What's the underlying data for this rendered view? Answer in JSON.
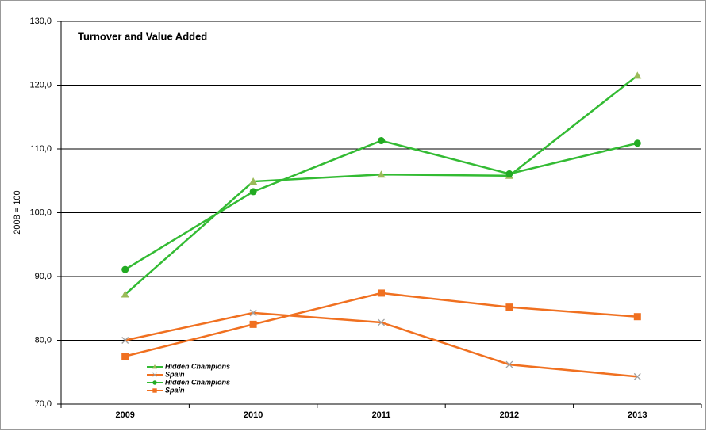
{
  "chart_data": {
    "type": "line",
    "title": "Turnover and Value Added",
    "y_label": "2008 = 100",
    "categories": [
      "2009",
      "2010",
      "2011",
      "2012",
      "2013"
    ],
    "series": [
      {
        "name": "Hidden Champions",
        "color": "#33bb33",
        "marker": "triangle",
        "marker_color": "#9bbb59",
        "values": [
          87.2,
          104.9,
          106.0,
          105.8,
          121.5
        ]
      },
      {
        "name": "Spain",
        "color": "#f07020",
        "marker": "x",
        "marker_color": "#a0a0a0",
        "values": [
          80.0,
          84.3,
          82.8,
          76.2,
          74.3
        ]
      },
      {
        "name": "Hidden Champions",
        "color": "#33bb33",
        "marker": "circle",
        "marker_color": "#22aa22",
        "values": [
          91.1,
          103.3,
          111.3,
          106.1,
          110.9
        ]
      },
      {
        "name": "Spain",
        "color": "#f07020",
        "marker": "square",
        "marker_color": "#f07020",
        "values": [
          77.5,
          82.5,
          87.4,
          85.2,
          83.7
        ]
      }
    ],
    "ylim": [
      70,
      130
    ],
    "yticks": [
      {
        "value": 70,
        "label": "70,0"
      },
      {
        "value": 80,
        "label": "80,0"
      },
      {
        "value": 90,
        "label": "90,0"
      },
      {
        "value": 100,
        "label": "100,0"
      },
      {
        "value": 110,
        "label": "110,0"
      },
      {
        "value": 120,
        "label": "120,0"
      },
      {
        "value": 130,
        "label": "130,0"
      }
    ],
    "grid": true,
    "legend": "lower left"
  }
}
